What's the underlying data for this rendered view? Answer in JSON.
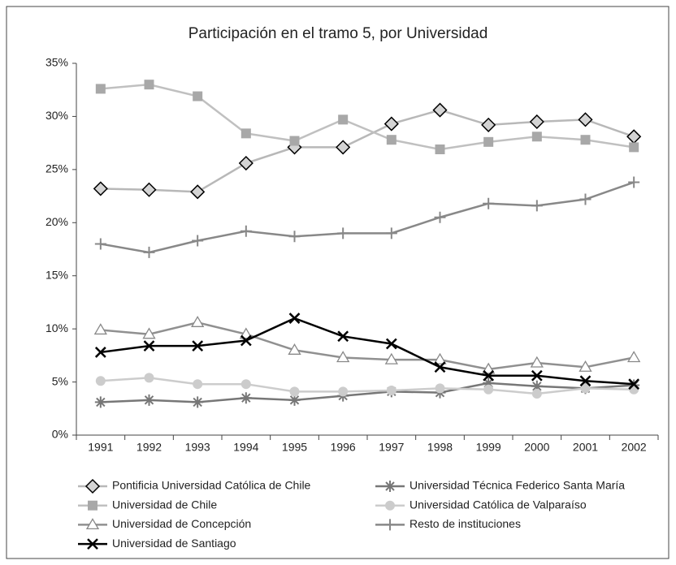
{
  "chart_data": {
    "type": "line",
    "title": "Participación en el tramo 5, por Universidad",
    "categories": [
      "1991",
      "1992",
      "1993",
      "1994",
      "1995",
      "1996",
      "1997",
      "1998",
      "1999",
      "2000",
      "2001",
      "2002"
    ],
    "ylim": [
      0,
      35
    ],
    "yticks": [
      {
        "value": 0,
        "label": "0%"
      },
      {
        "value": 5,
        "label": "5%"
      },
      {
        "value": 10,
        "label": "10%"
      },
      {
        "value": 15,
        "label": "15%"
      },
      {
        "value": 20,
        "label": "20%"
      },
      {
        "value": 25,
        "label": "25%"
      },
      {
        "value": 30,
        "label": "30%"
      },
      {
        "value": 35,
        "label": "35%"
      }
    ],
    "grid": false,
    "legend": "bottom",
    "series": [
      {
        "name": "Pontificia Universidad Católica de Chile",
        "color": "#b8b8b8",
        "marker": "diamond",
        "values": [
          23.2,
          23.1,
          22.9,
          25.6,
          27.1,
          27.1,
          29.3,
          30.6,
          29.2,
          29.5,
          29.7,
          28.1
        ]
      },
      {
        "name": "Universidad Técnica Federico Santa María",
        "color": "#777777",
        "marker": "asterisk",
        "values": [
          3.1,
          3.3,
          3.1,
          3.5,
          3.3,
          3.7,
          4.1,
          4.0,
          4.9,
          4.6,
          4.4,
          4.7
        ]
      },
      {
        "name": "Universidad de Chile",
        "color": "#c0c0c0",
        "marker": "square",
        "values": [
          32.6,
          33.0,
          31.9,
          28.4,
          27.7,
          29.7,
          27.8,
          26.9,
          27.6,
          28.1,
          27.8,
          27.1
        ]
      },
      {
        "name": "Universidad Católica de Valparaíso",
        "color": "#cccccc",
        "marker": "circle",
        "values": [
          5.1,
          5.4,
          4.8,
          4.8,
          4.1,
          4.1,
          4.2,
          4.4,
          4.3,
          3.9,
          4.4,
          4.3
        ]
      },
      {
        "name": "Universidad de Concepción",
        "color": "#909090",
        "marker": "triangle",
        "values": [
          9.9,
          9.5,
          10.6,
          9.5,
          8.0,
          7.3,
          7.1,
          7.1,
          6.2,
          6.8,
          6.4,
          7.3
        ]
      },
      {
        "name": "Resto de instituciones",
        "color": "#888888",
        "marker": "plus",
        "values": [
          18.0,
          17.2,
          18.3,
          19.2,
          18.7,
          19.0,
          19.0,
          20.5,
          21.8,
          21.6,
          22.2,
          23.8
        ]
      },
      {
        "name": "Universidad de Santiago",
        "color": "#000000",
        "marker": "cross",
        "values": [
          7.8,
          8.4,
          8.4,
          8.9,
          11.0,
          9.3,
          8.6,
          6.4,
          5.6,
          5.6,
          5.1,
          4.8
        ]
      }
    ]
  }
}
